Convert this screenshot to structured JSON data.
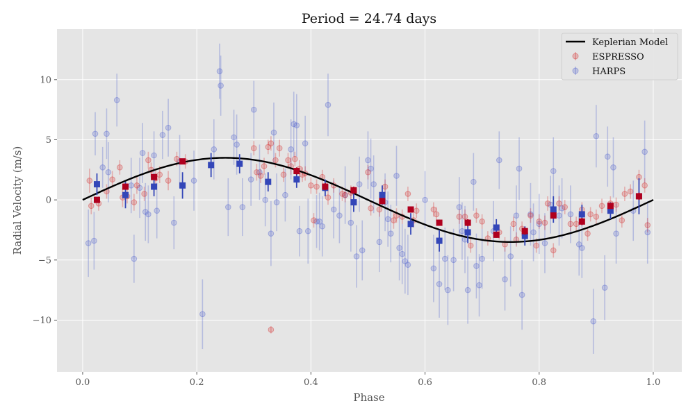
{
  "chart_data": {
    "type": "scatter",
    "title": "Period = 24.74 days",
    "xlabel": "Phase",
    "ylabel": "Radial Velocity (m/s)",
    "xlim": [
      -0.045,
      1.05
    ],
    "ylim": [
      -14.3,
      14.2
    ],
    "xticks": [
      0.0,
      0.2,
      0.4,
      0.6,
      0.8,
      1.0
    ],
    "xtick_labels": [
      "0.0",
      "0.2",
      "0.4",
      "0.6",
      "0.8",
      "1.0"
    ],
    "yticks": [
      -10,
      -5,
      0,
      5,
      10
    ],
    "ytick_labels": [
      "−10",
      "−5",
      "0",
      "5",
      "10"
    ],
    "grid": true,
    "legend_position": "top-right",
    "colors": {
      "background": "#e5e5e5",
      "grid": "#ffffff",
      "espresso": "#d62728",
      "harps": "#4a5ccc",
      "espresso_binned": "#b0001e",
      "harps_binned": "#3346b8",
      "model": "#000000"
    },
    "model": {
      "name": "Keplerian Model",
      "amplitude": 3.5,
      "type": "line"
    },
    "series": [
      {
        "name": "ESPRESSO",
        "x": [
          0.012,
          0.015,
          0.028,
          0.042,
          0.052,
          0.065,
          0.07,
          0.078,
          0.09,
          0.095,
          0.108,
          0.115,
          0.12,
          0.128,
          0.135,
          0.15,
          0.165,
          0.18,
          0.3,
          0.305,
          0.312,
          0.318,
          0.325,
          0.33,
          0.338,
          0.345,
          0.352,
          0.36,
          0.365,
          0.372,
          0.38,
          0.385,
          0.39,
          0.4,
          0.405,
          0.41,
          0.42,
          0.43,
          0.44,
          0.455,
          0.46,
          0.47,
          0.5,
          0.505,
          0.52,
          0.53,
          0.545,
          0.55,
          0.56,
          0.57,
          0.58,
          0.585,
          0.615,
          0.62,
          0.66,
          0.67,
          0.68,
          0.69,
          0.7,
          0.71,
          0.73,
          0.74,
          0.755,
          0.76,
          0.77,
          0.785,
          0.795,
          0.8,
          0.81,
          0.815,
          0.825,
          0.835,
          0.845,
          0.855,
          0.865,
          0.875,
          0.885,
          0.89,
          0.9,
          0.91,
          0.925,
          0.935,
          0.945,
          0.95,
          0.96,
          0.975,
          0.985,
          0.99,
          0.33
        ],
        "y": [
          1.6,
          -0.5,
          -0.3,
          0.7,
          1.7,
          2.7,
          0.2,
          0.3,
          -0.2,
          1.2,
          0.5,
          3.3,
          2.5,
          1.8,
          2.1,
          1.6,
          3.4,
          3.2,
          4.3,
          2.3,
          2.0,
          2.8,
          4.4,
          4.7,
          3.3,
          4.3,
          2.1,
          3.3,
          2.8,
          3.4,
          2.6,
          2.1,
          2.2,
          1.2,
          -1.7,
          1.1,
          1.9,
          0.2,
          1.2,
          0.5,
          0.4,
          0.6,
          2.3,
          -0.7,
          -0.8,
          1.1,
          -1.7,
          -1.3,
          -1.4,
          0.5,
          -1.7,
          -0.9,
          -0.8,
          -1.2,
          -1.4,
          -1.4,
          -3.8,
          -1.3,
          -1.8,
          -3.2,
          -2.7,
          -3.7,
          -2.0,
          -3.3,
          -2.4,
          -1.3,
          -3.8,
          -1.8,
          -1.9,
          -0.3,
          -4.2,
          -0.3,
          -0.6,
          -2.0,
          -2.0,
          -0.8,
          -2.8,
          -1.2,
          -1.4,
          -0.5,
          -0.3,
          -0.4,
          -1.7,
          0.5,
          0.7,
          1.9,
          1.2,
          -2.1,
          -10.8
        ],
        "err": [
          1.0,
          0.7,
          0.6,
          0.6,
          0.7,
          0.6,
          0.8,
          0.6,
          0.7,
          0.7,
          0.6,
          0.7,
          0.6,
          0.6,
          0.7,
          0.8,
          0.6,
          0.6,
          0.6,
          0.7,
          0.6,
          0.7,
          0.6,
          0.6,
          0.6,
          0.7,
          0.6,
          0.6,
          0.7,
          0.6,
          0.7,
          0.6,
          0.6,
          0.7,
          0.6,
          0.6,
          0.6,
          0.6,
          0.6,
          0.6,
          0.6,
          0.6,
          0.6,
          0.6,
          0.6,
          0.6,
          0.7,
          0.6,
          0.6,
          0.6,
          0.6,
          0.6,
          0.6,
          0.6,
          0.6,
          0.6,
          0.6,
          0.6,
          0.6,
          0.6,
          0.6,
          0.6,
          0.6,
          0.6,
          0.6,
          0.6,
          0.6,
          0.6,
          0.6,
          0.6,
          0.6,
          0.6,
          0.6,
          0.6,
          0.6,
          0.6,
          0.6,
          0.6,
          0.6,
          0.6,
          0.6,
          0.6,
          0.6,
          0.6,
          0.6,
          0.6,
          0.6,
          0.6,
          0.3
        ]
      },
      {
        "name": "HARPS",
        "x": [
          0.01,
          0.02,
          0.022,
          0.035,
          0.042,
          0.045,
          0.06,
          0.085,
          0.09,
          0.1,
          0.105,
          0.11,
          0.115,
          0.125,
          0.13,
          0.14,
          0.15,
          0.16,
          0.17,
          0.195,
          0.21,
          0.23,
          0.24,
          0.242,
          0.255,
          0.265,
          0.27,
          0.28,
          0.295,
          0.3,
          0.31,
          0.32,
          0.33,
          0.335,
          0.34,
          0.355,
          0.365,
          0.37,
          0.375,
          0.38,
          0.39,
          0.395,
          0.41,
          0.415,
          0.42,
          0.43,
          0.44,
          0.45,
          0.46,
          0.47,
          0.48,
          0.485,
          0.49,
          0.5,
          0.505,
          0.51,
          0.52,
          0.53,
          0.535,
          0.54,
          0.55,
          0.555,
          0.56,
          0.565,
          0.57,
          0.6,
          0.615,
          0.625,
          0.635,
          0.64,
          0.65,
          0.66,
          0.665,
          0.67,
          0.675,
          0.685,
          0.69,
          0.695,
          0.7,
          0.72,
          0.73,
          0.74,
          0.75,
          0.76,
          0.765,
          0.77,
          0.785,
          0.79,
          0.8,
          0.81,
          0.82,
          0.825,
          0.835,
          0.84,
          0.855,
          0.87,
          0.875,
          0.895,
          0.9,
          0.915,
          0.92,
          0.93,
          0.935,
          0.965,
          0.985,
          0.99
        ],
        "y": [
          -3.6,
          -3.4,
          5.5,
          2.7,
          5.5,
          2.3,
          8.3,
          1.2,
          -4.9,
          1.0,
          3.9,
          -1.0,
          -1.2,
          3.7,
          -0.9,
          5.4,
          6.0,
          -1.9,
          3.2,
          1.6,
          -9.5,
          4.2,
          10.7,
          9.5,
          -0.6,
          5.2,
          4.6,
          -0.6,
          1.7,
          7.5,
          2.3,
          0.0,
          -2.8,
          5.6,
          -0.2,
          0.4,
          4.2,
          6.3,
          6.2,
          -2.6,
          4.7,
          -2.6,
          -1.8,
          -1.8,
          -2.2,
          7.9,
          -0.8,
          -1.3,
          0.4,
          -1.9,
          -4.7,
          1.3,
          -4.2,
          3.3,
          2.6,
          1.3,
          -3.5,
          -0.2,
          -1.6,
          -2.8,
          2.0,
          -4.0,
          -4.5,
          -5.1,
          -5.4,
          0.0,
          -5.7,
          -7.0,
          -4.9,
          -7.5,
          -5.0,
          -0.6,
          -2.6,
          -3.3,
          -7.5,
          1.5,
          -5.5,
          -7.1,
          -4.9,
          -2.6,
          3.3,
          -6.6,
          -4.7,
          -1.3,
          2.6,
          -7.9,
          -1.2,
          -2.7,
          -2.0,
          -3.6,
          -0.4,
          2.4,
          -1.3,
          -0.7,
          -1.2,
          -3.7,
          -4.0,
          -10.1,
          5.3,
          -7.3,
          3.6,
          2.7,
          -2.8,
          -0.9,
          4.0,
          -2.7
        ],
        "err": [
          2.8,
          2.4,
          1.8,
          1.7,
          2.1,
          2.5,
          2.2,
          2.3,
          2.0,
          2.5,
          2.5,
          2.4,
          2.4,
          2.0,
          2.3,
          2.0,
          2.4,
          2.2,
          2.2,
          2.5,
          2.9,
          2.5,
          2.3,
          2.5,
          2.4,
          2.3,
          2.5,
          2.4,
          2.2,
          2.4,
          2.3,
          2.2,
          2.7,
          2.5,
          2.4,
          2.2,
          2.5,
          2.7,
          2.6,
          2.1,
          2.3,
          2.7,
          2.2,
          2.4,
          2.5,
          2.6,
          2.4,
          2.3,
          2.4,
          2.4,
          2.6,
          2.3,
          2.5,
          2.4,
          2.5,
          2.4,
          2.5,
          2.4,
          2.3,
          2.4,
          2.5,
          2.7,
          2.5,
          2.7,
          2.5,
          2.4,
          2.8,
          2.8,
          2.6,
          2.9,
          2.6,
          2.5,
          2.4,
          2.8,
          2.8,
          2.4,
          2.7,
          2.6,
          2.5,
          2.5,
          2.4,
          2.6,
          2.5,
          2.5,
          2.6,
          2.9,
          2.6,
          2.4,
          2.5,
          2.5,
          2.4,
          2.8,
          2.5,
          2.5,
          2.4,
          2.6,
          2.5,
          2.7,
          2.6,
          2.7,
          2.5,
          2.5,
          2.5,
          2.5,
          2.6,
          2.6
        ]
      },
      {
        "name": "ESPRESSO binned",
        "x": [
          0.025,
          0.075,
          0.125,
          0.175,
          0.375,
          0.425,
          0.475,
          0.525,
          0.575,
          0.625,
          0.675,
          0.725,
          0.775,
          0.825,
          0.875,
          0.925,
          0.975
        ],
        "y": [
          0.0,
          1.1,
          1.9,
          3.2,
          2.4,
          1.1,
          0.8,
          -0.1,
          -0.8,
          -1.9,
          -1.9,
          -2.9,
          -2.6,
          -1.3,
          -1.8,
          -0.5,
          0.3
        ],
        "err": [
          0.2,
          0.25,
          0.25,
          0.2,
          0.3,
          0.3,
          0.3,
          0.25,
          0.25,
          0.25,
          0.3,
          0.25,
          0.3,
          0.25,
          0.3,
          0.25,
          0.3
        ]
      },
      {
        "name": "HARPS binned",
        "x": [
          0.025,
          0.075,
          0.125,
          0.175,
          0.225,
          0.275,
          0.325,
          0.375,
          0.425,
          0.475,
          0.525,
          0.575,
          0.625,
          0.675,
          0.725,
          0.775,
          0.825,
          0.875,
          0.925,
          0.975
        ],
        "y": [
          1.3,
          0.4,
          1.1,
          1.2,
          2.9,
          3.0,
          1.5,
          1.7,
          1.0,
          -0.2,
          0.4,
          -2.0,
          -3.4,
          -2.7,
          -2.3,
          -3.0,
          -0.8,
          -1.2,
          -0.9,
          0.3
        ],
        "err": [
          0.9,
          1.1,
          0.8,
          1.1,
          1.0,
          0.8,
          0.8,
          0.7,
          0.7,
          0.8,
          0.8,
          0.9,
          0.9,
          0.9,
          0.7,
          0.8,
          1.1,
          0.8,
          0.7,
          1.5
        ]
      }
    ],
    "legend": [
      {
        "label": "Keplerian Model",
        "kind": "line"
      },
      {
        "label": "ESPRESSO",
        "kind": "marker"
      },
      {
        "label": "HARPS",
        "kind": "marker"
      }
    ]
  }
}
